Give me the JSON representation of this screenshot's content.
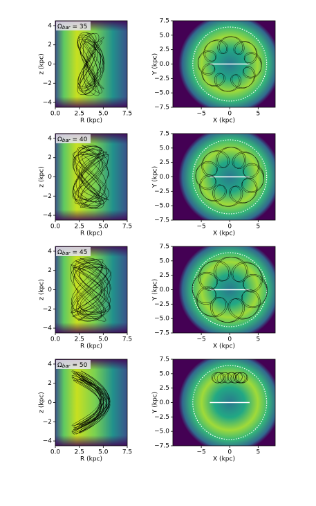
{
  "chart_data": [
    {
      "type": "orbit",
      "annotation": {
        "symbol": "Ω",
        "subscript": "bar",
        "text": "= 35"
      },
      "xlabel": "R (kpc)",
      "ylabel": "z (kpc)",
      "xlim": [
        0,
        7.5
      ],
      "ylim": [
        -4.5,
        4.5
      ],
      "xticks": [
        {
          "value": 0,
          "label": "0.0"
        },
        2.5,
        {
          "value": 5,
          "label": "5.0"
        },
        7.5
      ],
      "yticks": [
        {
          "value": -4,
          "label": "−4"
        },
        {
          "value": -2,
          "label": "−2"
        },
        0,
        2,
        4
      ]
    },
    {
      "type": "orbit",
      "xlabel": "X (kpc)",
      "ylabel": "Y (kpc)",
      "xlim": [
        -10,
        8
      ],
      "ylim": [
        -7.5,
        7.5
      ],
      "xticks": [
        {
          "value": -5,
          "label": "−5"
        },
        0,
        5
      ],
      "yticks": [
        {
          "value": -7.5,
          "label": "−7.5"
        },
        {
          "value": -5,
          "label": "−5.0"
        },
        {
          "value": -2.5,
          "label": "−2.5"
        },
        {
          "value": 0,
          "label": "0.0"
        },
        2.5,
        {
          "value": 5,
          "label": "5.0"
        },
        7.5
      ]
    },
    {
      "type": "orbit",
      "annotation": {
        "symbol": "Ω",
        "subscript": "bar",
        "text": "= 40"
      },
      "xlabel": "R (kpc)",
      "ylabel": "z (kpc)",
      "xlim": [
        0,
        7.5
      ],
      "ylim": [
        -4.5,
        4.5
      ],
      "xticks": [
        {
          "value": 0,
          "label": "0.0"
        },
        2.5,
        {
          "value": 5,
          "label": "5.0"
        },
        7.5
      ],
      "yticks": [
        {
          "value": -4,
          "label": "−4"
        },
        {
          "value": -2,
          "label": "−2"
        },
        0,
        2,
        4
      ]
    },
    {
      "type": "orbit",
      "xlabel": "X (kpc)",
      "ylabel": "Y (kpc)",
      "xlim": [
        -10,
        8
      ],
      "ylim": [
        -7.5,
        7.5
      ],
      "xticks": [
        {
          "value": -5,
          "label": "−5"
        },
        0,
        5
      ],
      "yticks": [
        {
          "value": -7.5,
          "label": "−7.5"
        },
        {
          "value": -5,
          "label": "−5.0"
        },
        {
          "value": -2.5,
          "label": "−2.5"
        },
        {
          "value": 0,
          "label": "0.0"
        },
        2.5,
        {
          "value": 5,
          "label": "5.0"
        },
        7.5
      ]
    },
    {
      "type": "orbit",
      "annotation": {
        "symbol": "Ω",
        "subscript": "bar",
        "text": "= 45"
      },
      "xlabel": "R (kpc)",
      "ylabel": "z (kpc)",
      "xlim": [
        0,
        7.5
      ],
      "ylim": [
        -4.5,
        4.5
      ],
      "xticks": [
        {
          "value": 0,
          "label": "0.0"
        },
        2.5,
        {
          "value": 5,
          "label": "5.0"
        },
        7.5
      ],
      "yticks": [
        {
          "value": -4,
          "label": "−4"
        },
        {
          "value": -2,
          "label": "−2"
        },
        0,
        2,
        4
      ]
    },
    {
      "type": "orbit",
      "xlabel": "X (kpc)",
      "ylabel": "Y (kpc)",
      "xlim": [
        -10,
        8
      ],
      "ylim": [
        -7.5,
        7.5
      ],
      "xticks": [
        {
          "value": -5,
          "label": "−5"
        },
        0,
        5
      ],
      "yticks": [
        {
          "value": -7.5,
          "label": "−7.5"
        },
        {
          "value": -5,
          "label": "−5.0"
        },
        {
          "value": -2.5,
          "label": "−2.5"
        },
        {
          "value": 0,
          "label": "0.0"
        },
        2.5,
        {
          "value": 5,
          "label": "5.0"
        },
        7.5
      ]
    },
    {
      "type": "orbit",
      "annotation": {
        "symbol": "Ω",
        "subscript": "bar",
        "text": "= 50"
      },
      "xlabel": "R (kpc)",
      "ylabel": "z (kpc)",
      "xlim": [
        0,
        7.5
      ],
      "ylim": [
        -4.5,
        4.5
      ],
      "xticks": [
        {
          "value": 0,
          "label": "0.0"
        },
        2.5,
        {
          "value": 5,
          "label": "5.0"
        },
        7.5
      ],
      "yticks": [
        {
          "value": -4,
          "label": "−4"
        },
        {
          "value": -2,
          "label": "−2"
        },
        0,
        2,
        4
      ]
    },
    {
      "type": "orbit",
      "xlabel": "X (kpc)",
      "ylabel": "Y (kpc)",
      "xlim": [
        -10,
        8
      ],
      "ylim": [
        -7.5,
        7.5
      ],
      "xticks": [
        {
          "value": -5,
          "label": "−5"
        },
        0,
        5
      ],
      "yticks": [
        {
          "value": -7.5,
          "label": "−7.5"
        },
        {
          "value": -5,
          "label": "−5.0"
        },
        {
          "value": -2.5,
          "label": "−2.5"
        },
        {
          "value": 0,
          "label": "0.0"
        },
        2.5,
        {
          "value": 5,
          "label": "5.0"
        },
        7.5
      ]
    }
  ]
}
